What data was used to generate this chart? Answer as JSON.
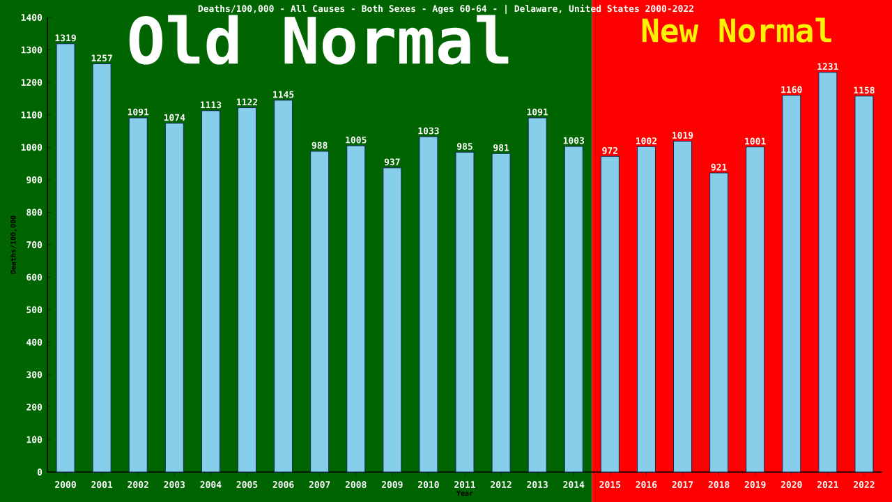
{
  "chart_data": {
    "type": "bar",
    "title": "Deaths/100,000 - All Causes - Both Sexes - Ages 60-64 -  | Delaware, United States 2000-2022",
    "xlabel": "Year",
    "ylabel": "Deaths/100,000",
    "categories": [
      "2000",
      "2001",
      "2002",
      "2003",
      "2004",
      "2005",
      "2006",
      "2007",
      "2008",
      "2009",
      "2010",
      "2011",
      "2012",
      "2013",
      "2014",
      "2015",
      "2016",
      "2017",
      "2018",
      "2019",
      "2020",
      "2021",
      "2022"
    ],
    "values": [
      1319,
      1257,
      1091,
      1074,
      1113,
      1122,
      1145,
      988,
      1005,
      937,
      1033,
      985,
      981,
      1091,
      1003,
      972,
      1002,
      1019,
      921,
      1001,
      1160,
      1231,
      1158
    ],
    "color": "#87ceeb",
    "ylim": [
      0,
      1400
    ],
    "yticks": [
      0,
      100,
      200,
      300,
      400,
      500,
      600,
      700,
      800,
      900,
      1000,
      1100,
      1200,
      1300,
      1400
    ],
    "data_labels": true,
    "grid": false,
    "bands": [
      {
        "axis": "x",
        "from": "2000",
        "to": "2014",
        "label": "Old Normal",
        "color": "#006400"
      },
      {
        "axis": "x",
        "from": "2015",
        "to": "2022",
        "label": "New Normal",
        "color": "#ff0000"
      }
    ]
  }
}
